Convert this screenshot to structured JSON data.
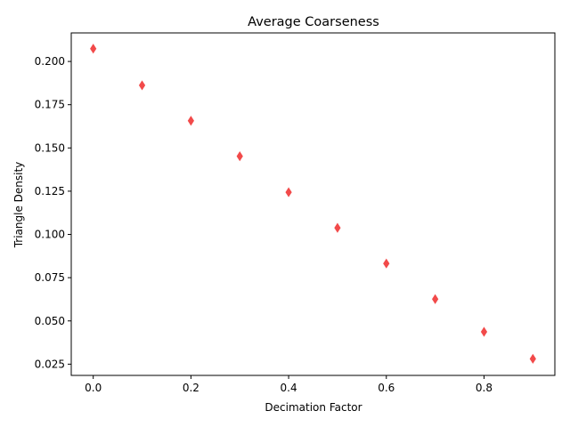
{
  "chart_data": {
    "type": "scatter",
    "title": "Average Coarseness",
    "xlabel": "Decimation Factor",
    "ylabel": "Triangle Density",
    "xlim": [
      -0.045,
      0.945
    ],
    "ylim": [
      0.0185,
      0.2165
    ],
    "xticks": [
      0.0,
      0.2,
      0.4,
      0.6,
      0.8
    ],
    "xtick_labels": [
      "0.0",
      "0.2",
      "0.4",
      "0.6",
      "0.8"
    ],
    "yticks": [
      0.025,
      0.05,
      0.075,
      0.1,
      0.125,
      0.15,
      0.175,
      0.2
    ],
    "ytick_labels": [
      "0.025",
      "0.050",
      "0.075",
      "0.100",
      "0.125",
      "0.150",
      "0.175",
      "0.200"
    ],
    "grid": false,
    "marker": "diamond",
    "color": "#f24a4a",
    "series": [
      {
        "x": [
          0.0,
          0.1,
          0.2,
          0.3,
          0.4,
          0.5,
          0.6,
          0.7,
          0.8,
          0.9
        ],
        "y": [
          0.2074,
          0.1862,
          0.1657,
          0.1452,
          0.1244,
          0.1038,
          0.0832,
          0.0626,
          0.0437,
          0.0281
        ]
      }
    ]
  }
}
